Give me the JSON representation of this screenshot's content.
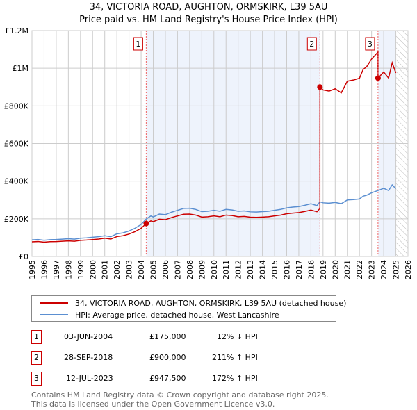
{
  "chart_data": {
    "type": "line",
    "title": "34, VICTORIA ROAD, AUGHTON, ORMSKIRK, L39 5AU",
    "subtitle": "Price paid vs. HM Land Registry's House Price Index (HPI)",
    "xlim": [
      1995,
      2026
    ],
    "ylim": [
      0,
      1200000
    ],
    "x_ticks": [
      "1995",
      "1996",
      "1997",
      "1998",
      "1999",
      "2000",
      "2001",
      "2002",
      "2003",
      "2004",
      "2005",
      "2006",
      "2007",
      "2008",
      "2009",
      "2010",
      "2011",
      "2012",
      "2013",
      "2014",
      "2015",
      "2016",
      "2017",
      "2018",
      "2019",
      "2020",
      "2021",
      "2022",
      "2023",
      "2024",
      "2025",
      "2026"
    ],
    "y_ticks": [
      {
        "v": 0,
        "label": "£0"
      },
      {
        "v": 200000,
        "label": "£200K"
      },
      {
        "v": 400000,
        "label": "£400K"
      },
      {
        "v": 600000,
        "label": "£600K"
      },
      {
        "v": 800000,
        "label": "£800K"
      },
      {
        "v": 1000000,
        "label": "£1M"
      },
      {
        "v": 1200000,
        "label": "£1.2M"
      }
    ],
    "grid": true,
    "hpi_series": {
      "name": "HPI: Average price, detached house, West Lancashire",
      "color": "#5b8fd1",
      "x": [
        1995,
        1995.5,
        1996,
        1996.5,
        1997,
        1997.5,
        1998,
        1998.5,
        1999,
        1999.5,
        2000,
        2000.5,
        2001,
        2001.5,
        2002,
        2002.5,
        2003,
        2003.5,
        2004,
        2004.42,
        2004.8,
        2005,
        2005.5,
        2006,
        2006.5,
        2007,
        2007.5,
        2008,
        2008.5,
        2009,
        2009.5,
        2010,
        2010.5,
        2011,
        2011.5,
        2012,
        2012.5,
        2013,
        2013.5,
        2014,
        2014.5,
        2015,
        2015.5,
        2016,
        2016.5,
        2017,
        2017.5,
        2018,
        2018.5,
        2018.74,
        2019,
        2019.5,
        2020,
        2020.5,
        2021,
        2021.5,
        2022,
        2022.3,
        2022.6,
        2023,
        2023.53,
        2024,
        2024.4,
        2024.7,
        2025
      ],
      "y": [
        88000,
        90000,
        86000,
        89000,
        90000,
        92000,
        94000,
        92000,
        97000,
        99000,
        102000,
        105000,
        110000,
        105000,
        120000,
        125000,
        135000,
        150000,
        170000,
        199000,
        215000,
        210000,
        225000,
        222000,
        235000,
        245000,
        255000,
        256000,
        250000,
        238000,
        240000,
        245000,
        240000,
        250000,
        247000,
        240000,
        242000,
        237000,
        236000,
        238000,
        240000,
        245000,
        250000,
        258000,
        262000,
        265000,
        272000,
        280000,
        270000,
        290000,
        285000,
        283000,
        287000,
        280000,
        300000,
        302000,
        305000,
        320000,
        325000,
        338000,
        350000,
        362000,
        350000,
        380000,
        360000
      ]
    },
    "price_series": {
      "name": "34, VICTORIA ROAD, AUGHTON, ORMSKIRK, L39 5AU (detached house)",
      "color": "#cc0000"
    },
    "sales": [
      {
        "id": "1",
        "x": 2004.42,
        "date": "03-JUN-2004",
        "price": 175000,
        "price_label": "£175,000",
        "hpi": "12% ↓ HPI"
      },
      {
        "id": "2",
        "x": 2018.74,
        "date": "28-SEP-2018",
        "price": 900000,
        "price_label": "£900,000",
        "hpi": "211% ↑ HPI"
      },
      {
        "id": "3",
        "x": 2023.53,
        "date": "12-JUL-2023",
        "price": 947500,
        "price_label": "£947,500",
        "hpi": "172% ↑ HPI"
      }
    ],
    "data_end": 2025.0,
    "shade_color": "#eef3fc"
  },
  "footer": {
    "line1": "Contains HM Land Registry data © Crown copyright and database right 2025.",
    "line2": "This data is licensed under the Open Government Licence v3.0."
  }
}
